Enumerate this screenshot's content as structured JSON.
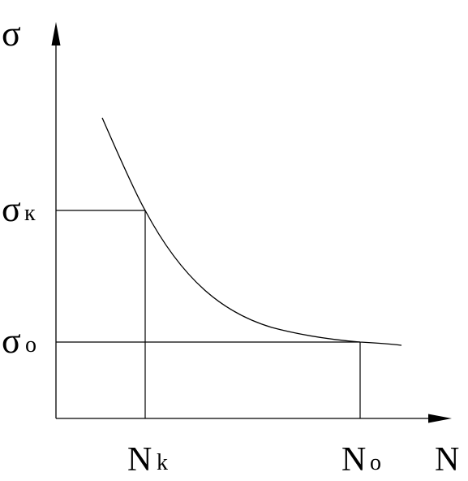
{
  "diagram": {
    "axis_y_label": "σ",
    "axis_x_label": "N",
    "sigma_k": {
      "symbol": "σ",
      "subscript": "к"
    },
    "sigma_0": {
      "symbol": "σ",
      "subscript": "o"
    },
    "n_k": {
      "symbol": "N",
      "subscript": "k"
    },
    "n_0": {
      "symbol": "N",
      "subscript": "o"
    },
    "colors": {
      "ink": "#000000",
      "background": "#ffffff"
    }
  }
}
